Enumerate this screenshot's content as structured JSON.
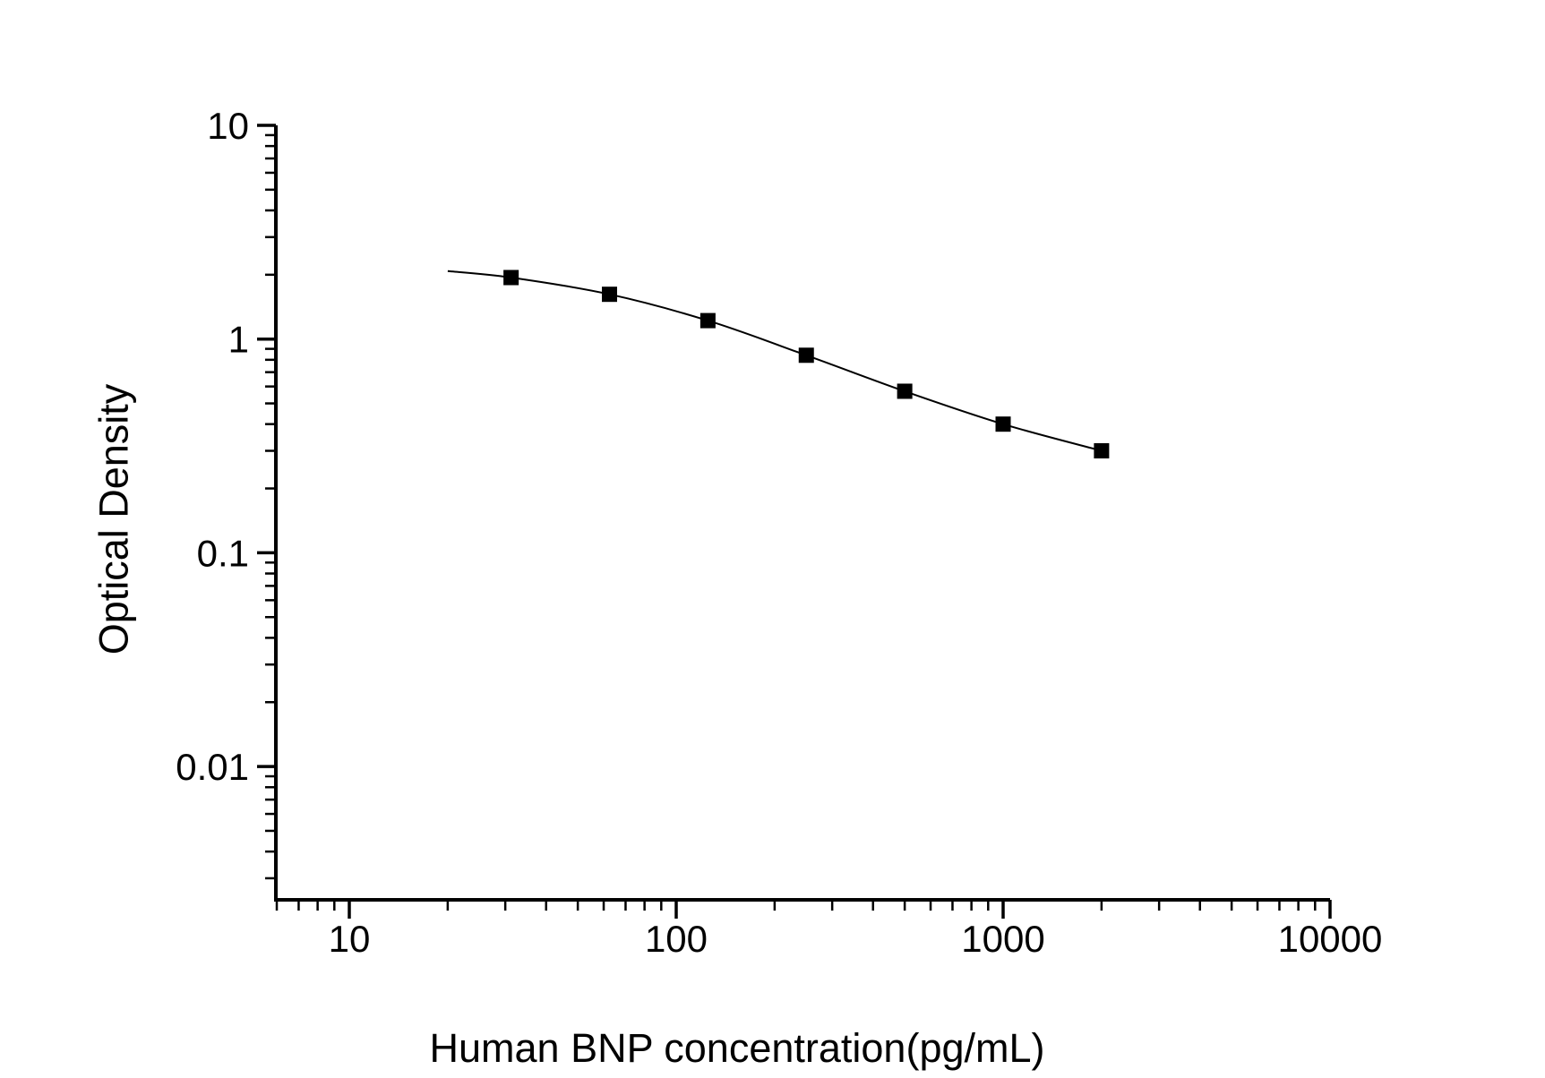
{
  "chart_data": {
    "type": "scatter",
    "title": "",
    "xlabel": "Human BNP concentration(pg/mL)",
    "ylabel": "Optical Density",
    "x_scale": "log",
    "y_scale": "log",
    "xlim": [
      5.96,
      10000
    ],
    "ylim": [
      0.00235,
      10
    ],
    "x_major_ticks": [
      10,
      100,
      1000,
      10000
    ],
    "x_major_tick_labels": [
      "10",
      "100",
      "1000",
      "10000"
    ],
    "y_major_ticks": [
      10,
      1,
      0.1,
      0.01
    ],
    "y_major_tick_labels": [
      "10",
      "1",
      "0.1",
      "0.01"
    ],
    "grid": false,
    "legend_position": "none",
    "marker": "filled-square",
    "marker_color": "#000000",
    "line_color": "#000000",
    "axis_color": "#000000",
    "background_color": "#ffffff",
    "series": [
      {
        "name": "standard-curve-points",
        "x": [
          31.25,
          62.5,
          125,
          250,
          500,
          1000,
          2000
        ],
        "y": [
          1.94,
          1.62,
          1.22,
          0.84,
          0.57,
          0.4,
          0.3
        ]
      }
    ],
    "fit_curve": {
      "name": "4pl-fit-line",
      "x": [
        20,
        31.25,
        62.5,
        125,
        250,
        500,
        1000,
        2000
      ],
      "y": [
        2.08,
        1.94,
        1.62,
        1.22,
        0.84,
        0.57,
        0.4,
        0.3
      ]
    }
  }
}
